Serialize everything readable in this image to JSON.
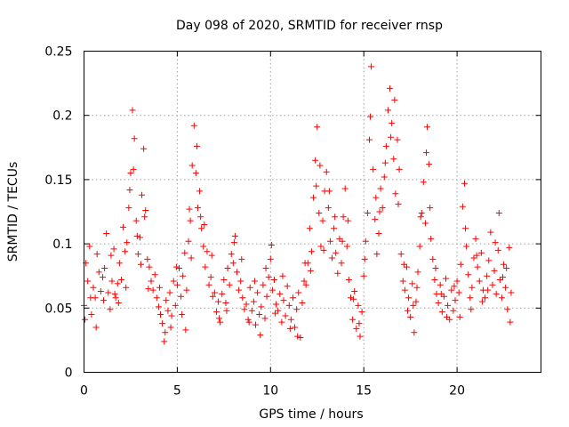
{
  "chart_data": {
    "type": "scatter",
    "title": "Day 098 of 2020, SRMTID for receiver rnsp",
    "xlabel": "GPS time / hours",
    "ylabel": "SRMTID / TECUs",
    "xlim": [
      0,
      24.5
    ],
    "ylim": [
      0,
      0.25
    ],
    "xticks": [
      0,
      5,
      10,
      15,
      20
    ],
    "xtick_labels": [
      "0",
      "5",
      "10",
      "15",
      "20"
    ],
    "yticks": [
      0,
      0.05,
      0.1,
      0.15,
      0.2,
      0.25
    ],
    "ytick_labels": [
      "0",
      "0.05",
      "0.1",
      "0.15",
      "0.2",
      "0.25"
    ],
    "grid": true,
    "marker": "plus",
    "series": [
      {
        "name": "SRMTID",
        "color": "#ff0000",
        "points": [
          [
            0.0,
            0.052
          ],
          [
            0.1,
            0.085
          ],
          [
            0.2,
            0.071
          ],
          [
            0.3,
            0.098
          ],
          [
            0.4,
            0.045
          ],
          [
            0.5,
            0.066
          ],
          [
            0.6,
            0.058
          ],
          [
            0.7,
            0.092
          ],
          [
            0.8,
            0.078
          ],
          [
            0.9,
            0.063
          ],
          [
            1.0,
            0.074
          ],
          [
            1.1,
            0.081
          ],
          [
            1.2,
            0.108
          ],
          [
            1.3,
            0.062
          ],
          [
            1.4,
            0.049
          ],
          [
            1.5,
            0.071
          ],
          [
            1.6,
            0.096
          ],
          [
            1.7,
            0.058
          ],
          [
            1.8,
            0.069
          ],
          [
            1.9,
            0.085
          ],
          [
            2.0,
            0.072
          ],
          [
            2.1,
            0.113
          ],
          [
            2.2,
            0.094
          ],
          [
            2.3,
            0.101
          ],
          [
            2.4,
            0.128
          ],
          [
            2.5,
            0.155
          ],
          [
            2.6,
            0.204
          ],
          [
            2.7,
            0.182
          ],
          [
            2.8,
            0.118
          ],
          [
            2.9,
            0.092
          ],
          [
            3.0,
            0.105
          ],
          [
            3.1,
            0.138
          ],
          [
            3.2,
            0.174
          ],
          [
            3.3,
            0.126
          ],
          [
            3.4,
            0.088
          ],
          [
            3.5,
            0.082
          ],
          [
            3.6,
            0.071
          ],
          [
            3.7,
            0.064
          ],
          [
            3.8,
            0.076
          ],
          [
            3.9,
            0.058
          ],
          [
            4.0,
            0.051
          ],
          [
            4.1,
            0.045
          ],
          [
            4.2,
            0.038
          ],
          [
            4.3,
            0.024
          ],
          [
            4.4,
            0.056
          ],
          [
            4.5,
            0.048
          ],
          [
            4.6,
            0.062
          ],
          [
            4.7,
            0.044
          ],
          [
            4.8,
            0.071
          ],
          [
            4.9,
            0.052
          ],
          [
            5.0,
            0.068
          ],
          [
            5.1,
            0.081
          ],
          [
            5.2,
            0.059
          ],
          [
            5.3,
            0.075
          ],
          [
            5.4,
            0.093
          ],
          [
            5.5,
            0.064
          ],
          [
            5.6,
            0.102
          ],
          [
            5.7,
            0.118
          ],
          [
            5.8,
            0.161
          ],
          [
            5.9,
            0.192
          ],
          [
            6.0,
            0.155
          ],
          [
            6.1,
            0.128
          ],
          [
            6.2,
            0.141
          ],
          [
            6.3,
            0.112
          ],
          [
            6.4,
            0.098
          ],
          [
            6.5,
            0.082
          ],
          [
            6.6,
            0.094
          ],
          [
            6.7,
            0.068
          ],
          [
            6.8,
            0.074
          ],
          [
            6.9,
            0.059
          ],
          [
            7.0,
            0.062
          ],
          [
            7.1,
            0.047
          ],
          [
            7.2,
            0.055
          ],
          [
            7.3,
            0.039
          ],
          [
            7.4,
            0.061
          ],
          [
            7.5,
            0.072
          ],
          [
            7.6,
            0.054
          ],
          [
            7.7,
            0.081
          ],
          [
            7.8,
            0.068
          ],
          [
            7.9,
            0.092
          ],
          [
            8.0,
            0.085
          ],
          [
            8.1,
            0.106
          ],
          [
            8.2,
            0.078
          ],
          [
            8.3,
            0.064
          ],
          [
            8.4,
            0.071
          ],
          [
            8.5,
            0.058
          ],
          [
            8.6,
            0.049
          ],
          [
            8.7,
            0.053
          ],
          [
            8.8,
            0.041
          ],
          [
            8.9,
            0.066
          ],
          [
            9.0,
            0.048
          ],
          [
            9.1,
            0.055
          ],
          [
            9.2,
            0.037
          ],
          [
            9.3,
            0.062
          ],
          [
            9.4,
            0.045
          ],
          [
            9.5,
            0.051
          ],
          [
            9.6,
            0.068
          ],
          [
            9.7,
            0.042
          ],
          [
            9.8,
            0.059
          ],
          [
            9.9,
            0.074
          ],
          [
            10.0,
            0.088
          ],
          [
            10.1,
            0.064
          ],
          [
            10.2,
            0.072
          ],
          [
            10.3,
            0.053
          ],
          [
            10.4,
            0.048
          ],
          [
            10.5,
            0.061
          ],
          [
            10.6,
            0.039
          ],
          [
            10.7,
            0.056
          ],
          [
            10.8,
            0.044
          ],
          [
            10.9,
            0.067
          ],
          [
            11.0,
            0.052
          ],
          [
            11.1,
            0.041
          ],
          [
            11.2,
            0.058
          ],
          [
            11.3,
            0.035
          ],
          [
            11.4,
            0.049
          ],
          [
            11.5,
            0.062
          ],
          [
            11.6,
            0.027
          ],
          [
            11.7,
            0.054
          ],
          [
            11.8,
            0.071
          ],
          [
            11.9,
            0.068
          ],
          [
            12.0,
            0.085
          ],
          [
            12.1,
            0.112
          ],
          [
            12.2,
            0.094
          ],
          [
            12.3,
            0.136
          ],
          [
            12.4,
            0.165
          ],
          [
            12.5,
            0.191
          ],
          [
            12.6,
            0.124
          ],
          [
            12.7,
            0.098
          ],
          [
            12.8,
            0.118
          ],
          [
            12.9,
            0.141
          ],
          [
            13.0,
            0.156
          ],
          [
            13.1,
            0.128
          ],
          [
            13.2,
            0.102
          ],
          [
            13.3,
            0.089
          ],
          [
            13.4,
            0.112
          ],
          [
            13.5,
            0.093
          ],
          [
            13.6,
            0.077
          ],
          [
            13.7,
            0.104
          ],
          [
            13.8,
            0.085
          ],
          [
            13.9,
            0.121
          ],
          [
            14.0,
            0.143
          ],
          [
            14.1,
            0.098
          ],
          [
            14.2,
            0.072
          ],
          [
            14.3,
            0.058
          ],
          [
            14.4,
            0.041
          ],
          [
            14.5,
            0.063
          ],
          [
            14.6,
            0.034
          ],
          [
            14.7,
            0.052
          ],
          [
            14.8,
            0.028
          ],
          [
            14.9,
            0.047
          ],
          [
            15.0,
            0.075
          ],
          [
            15.1,
            0.102
          ],
          [
            15.2,
            0.124
          ],
          [
            15.3,
            0.181
          ],
          [
            15.4,
            0.238
          ],
          [
            15.5,
            0.158
          ],
          [
            15.6,
            0.119
          ],
          [
            15.7,
            0.092
          ],
          [
            15.8,
            0.108
          ],
          [
            15.9,
            0.143
          ],
          [
            16.0,
            0.128
          ],
          [
            16.1,
            0.152
          ],
          [
            16.2,
            0.176
          ],
          [
            16.3,
            0.204
          ],
          [
            16.4,
            0.221
          ],
          [
            16.5,
            0.194
          ],
          [
            16.6,
            0.166
          ],
          [
            16.7,
            0.139
          ],
          [
            16.8,
            0.181
          ],
          [
            16.9,
            0.158
          ],
          [
            17.0,
            0.092
          ],
          [
            17.1,
            0.071
          ],
          [
            17.2,
            0.064
          ],
          [
            17.3,
            0.082
          ],
          [
            17.4,
            0.058
          ],
          [
            17.5,
            0.043
          ],
          [
            17.6,
            0.069
          ],
          [
            17.7,
            0.031
          ],
          [
            17.8,
            0.055
          ],
          [
            17.9,
            0.078
          ],
          [
            18.0,
            0.098
          ],
          [
            18.1,
            0.124
          ],
          [
            18.2,
            0.148
          ],
          [
            18.3,
            0.116
          ],
          [
            18.4,
            0.191
          ],
          [
            18.5,
            0.162
          ],
          [
            18.6,
            0.104
          ],
          [
            18.7,
            0.088
          ],
          [
            18.8,
            0.072
          ],
          [
            18.9,
            0.061
          ],
          [
            19.0,
            0.054
          ],
          [
            19.1,
            0.068
          ],
          [
            19.2,
            0.047
          ],
          [
            19.3,
            0.059
          ],
          [
            19.4,
            0.073
          ],
          [
            19.5,
            0.052
          ],
          [
            19.6,
            0.041
          ],
          [
            19.7,
            0.064
          ],
          [
            19.8,
            0.048
          ],
          [
            19.9,
            0.056
          ],
          [
            20.0,
            0.071
          ],
          [
            20.1,
            0.062
          ],
          [
            20.2,
            0.084
          ],
          [
            20.3,
            0.129
          ],
          [
            20.4,
            0.147
          ],
          [
            20.5,
            0.098
          ],
          [
            20.6,
            0.076
          ],
          [
            20.7,
            0.058
          ],
          [
            20.8,
            0.066
          ],
          [
            20.9,
            0.089
          ],
          [
            21.0,
            0.104
          ],
          [
            21.1,
            0.082
          ],
          [
            21.2,
            0.071
          ],
          [
            21.3,
            0.093
          ],
          [
            21.4,
            0.064
          ],
          [
            21.5,
            0.058
          ],
          [
            21.6,
            0.075
          ],
          [
            21.7,
            0.087
          ],
          [
            21.8,
            0.109
          ],
          [
            21.9,
            0.068
          ],
          [
            22.0,
            0.079
          ],
          [
            22.1,
            0.061
          ],
          [
            22.2,
            0.095
          ],
          [
            22.3,
            0.072
          ],
          [
            22.4,
            0.058
          ],
          [
            22.5,
            0.084
          ],
          [
            22.6,
            0.066
          ],
          [
            22.7,
            0.049
          ],
          [
            22.8,
            0.097
          ],
          [
            22.9,
            0.062
          ],
          [
            0.05,
            0.041
          ],
          [
            0.35,
            0.058
          ],
          [
            0.65,
            0.035
          ],
          [
            1.05,
            0.056
          ],
          [
            1.45,
            0.091
          ],
          [
            1.85,
            0.054
          ],
          [
            2.25,
            0.066
          ],
          [
            2.65,
            0.158
          ],
          [
            2.85,
            0.106
          ],
          [
            3.05,
            0.084
          ],
          [
            3.25,
            0.121
          ],
          [
            3.45,
            0.065
          ],
          [
            4.05,
            0.066
          ],
          [
            4.35,
            0.031
          ],
          [
            4.65,
            0.035
          ],
          [
            4.95,
            0.082
          ],
          [
            5.25,
            0.045
          ],
          [
            5.45,
            0.033
          ],
          [
            5.75,
            0.089
          ],
          [
            6.05,
            0.176
          ],
          [
            6.25,
            0.121
          ],
          [
            6.45,
            0.115
          ],
          [
            6.85,
            0.091
          ],
          [
            7.25,
            0.042
          ],
          [
            7.65,
            0.048
          ],
          [
            8.05,
            0.101
          ],
          [
            8.45,
            0.088
          ],
          [
            8.85,
            0.039
          ],
          [
            9.15,
            0.071
          ],
          [
            9.45,
            0.029
          ],
          [
            9.75,
            0.081
          ],
          [
            10.05,
            0.099
          ],
          [
            10.25,
            0.046
          ],
          [
            10.65,
            0.075
          ],
          [
            11.05,
            0.034
          ],
          [
            11.45,
            0.028
          ],
          [
            11.85,
            0.085
          ],
          [
            12.15,
            0.079
          ],
          [
            12.45,
            0.145
          ],
          [
            12.65,
            0.161
          ],
          [
            12.85,
            0.095
          ],
          [
            13.15,
            0.141
          ],
          [
            13.45,
            0.121
          ],
          [
            13.85,
            0.102
          ],
          [
            14.15,
            0.118
          ],
          [
            14.45,
            0.057
          ],
          [
            14.75,
            0.038
          ],
          [
            15.05,
            0.088
          ],
          [
            15.35,
            0.199
          ],
          [
            15.65,
            0.136
          ],
          [
            15.85,
            0.125
          ],
          [
            16.15,
            0.163
          ],
          [
            16.45,
            0.183
          ],
          [
            16.65,
            0.212
          ],
          [
            16.85,
            0.131
          ],
          [
            17.15,
            0.084
          ],
          [
            17.35,
            0.048
          ],
          [
            17.65,
            0.052
          ],
          [
            17.85,
            0.066
          ],
          [
            18.05,
            0.121
          ],
          [
            18.35,
            0.171
          ],
          [
            18.55,
            0.128
          ],
          [
            18.85,
            0.081
          ],
          [
            19.15,
            0.061
          ],
          [
            19.45,
            0.043
          ],
          [
            19.85,
            0.067
          ],
          [
            20.15,
            0.043
          ],
          [
            20.45,
            0.112
          ],
          [
            20.75,
            0.049
          ],
          [
            21.05,
            0.091
          ],
          [
            21.35,
            0.055
          ],
          [
            21.65,
            0.064
          ],
          [
            22.05,
            0.101
          ],
          [
            22.25,
            0.124
          ],
          [
            22.45,
            0.074
          ],
          [
            22.65,
            0.081
          ],
          [
            22.85,
            0.039
          ],
          [
            1.65,
            0.061
          ],
          [
            2.45,
            0.142
          ],
          [
            5.65,
            0.127
          ]
        ]
      }
    ]
  }
}
